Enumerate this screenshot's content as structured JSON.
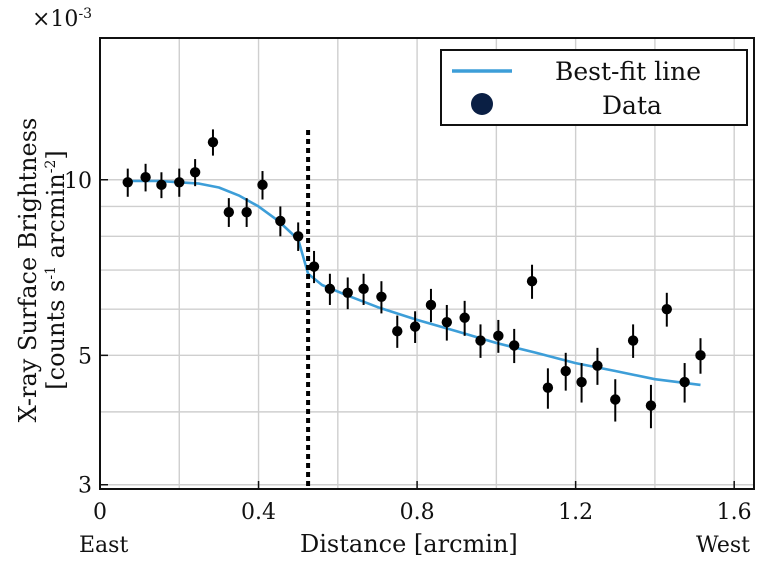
{
  "chart_data": {
    "type": "scatter",
    "title": "",
    "xlabel": "Distance [arcmin]",
    "ylabel_line1": "X-ray Surface Brightness",
    "ylabel_line2": "[counts s",
    "ylabel_sup1": "-1",
    "ylabel_mid": " arcmin",
    "ylabel_sup2": "-2",
    "ylabel_end": "]",
    "y_multiplier_base": "×10",
    "y_multiplier_exp": "-3",
    "xlim": [
      0,
      1.65
    ],
    "ylim": [
      2.95,
      17.5
    ],
    "y_scale": "log",
    "grid": true,
    "x_ticks": [
      0,
      0.4,
      0.8,
      1.2,
      1.6
    ],
    "x_tick_labels": [
      "0",
      "0.4",
      "0.8",
      "1.2",
      "1.6"
    ],
    "y_ticks": [
      3,
      5,
      10
    ],
    "y_tick_labels": [
      "3",
      "5",
      "10"
    ],
    "x_grid_minor": [
      0.2,
      0.6,
      1.0,
      1.4
    ],
    "y_grid_minor": [
      4,
      6,
      7,
      8,
      9
    ],
    "x_end_labels": {
      "left": "East",
      "right": "West"
    },
    "legend": {
      "placement": "top-right",
      "entries": [
        {
          "label": "Best-fit line",
          "kind": "line",
          "color": "#3d9ed8"
        },
        {
          "label": "Data",
          "kind": "marker",
          "color": "#0a1f44"
        }
      ]
    },
    "vertical_marker_x": 0.525,
    "series": [
      {
        "name": "Data",
        "kind": "errorbar",
        "color": "#000000",
        "x": [
          0.07,
          0.115,
          0.155,
          0.2,
          0.24,
          0.285,
          0.325,
          0.37,
          0.41,
          0.455,
          0.5,
          0.54,
          0.58,
          0.625,
          0.665,
          0.71,
          0.75,
          0.795,
          0.835,
          0.875,
          0.92,
          0.96,
          1.005,
          1.045,
          1.09,
          1.13,
          1.175,
          1.215,
          1.255,
          1.3,
          1.345,
          1.39,
          1.43,
          1.475,
          1.515
        ],
        "y": [
          9.9,
          10.1,
          9.8,
          9.9,
          10.3,
          11.6,
          8.8,
          8.8,
          9.8,
          8.5,
          8.0,
          7.1,
          6.5,
          6.4,
          6.5,
          6.3,
          5.5,
          5.6,
          6.1,
          5.7,
          5.8,
          5.3,
          5.4,
          5.2,
          6.7,
          4.4,
          4.7,
          4.5,
          4.8,
          4.2,
          5.3,
          4.1,
          6.0,
          4.5,
          5.0
        ],
        "err": [
          0.55,
          0.55,
          0.5,
          0.55,
          0.55,
          0.6,
          0.5,
          0.5,
          0.55,
          0.5,
          0.45,
          0.45,
          0.4,
          0.4,
          0.4,
          0.4,
          0.35,
          0.35,
          0.4,
          0.4,
          0.4,
          0.35,
          0.35,
          0.35,
          0.45,
          0.35,
          0.35,
          0.35,
          0.35,
          0.35,
          0.35,
          0.35,
          0.4,
          0.35,
          0.35
        ]
      },
      {
        "name": "Best-fit line",
        "kind": "line",
        "color": "#3d9ed8",
        "x": [
          0.07,
          0.15,
          0.2,
          0.25,
          0.3,
          0.35,
          0.4,
          0.45,
          0.5,
          0.525,
          0.56,
          0.62,
          0.7,
          0.8,
          0.9,
          1.0,
          1.1,
          1.2,
          1.3,
          1.4,
          1.515
        ],
        "y": [
          9.95,
          9.95,
          9.9,
          9.85,
          9.7,
          9.4,
          9.0,
          8.5,
          7.9,
          6.9,
          6.6,
          6.35,
          6.05,
          5.75,
          5.5,
          5.25,
          5.05,
          4.85,
          4.7,
          4.55,
          4.45
        ]
      }
    ]
  }
}
